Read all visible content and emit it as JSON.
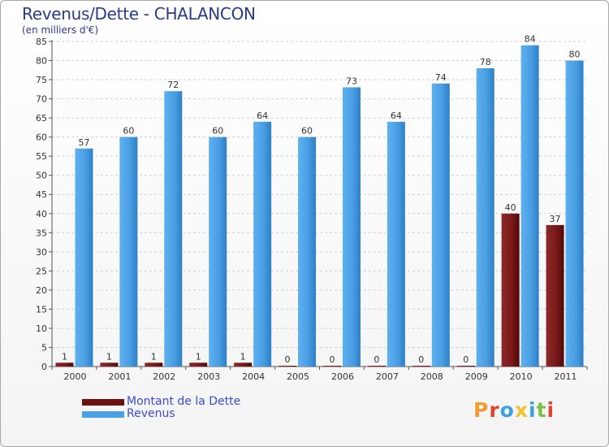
{
  "header": {
    "title": "Revenus/Dette - CHALANCON",
    "subtitle": "(en milliers d'€)"
  },
  "chart_data": {
    "type": "bar",
    "title": "Revenus/Dette - CHALANCON",
    "ylabel": "(en milliers d'€)",
    "xlabel": "",
    "ylim": [
      0,
      85
    ],
    "yticks": [
      0,
      5,
      10,
      15,
      20,
      25,
      30,
      35,
      40,
      45,
      50,
      55,
      60,
      65,
      70,
      75,
      80,
      85
    ],
    "grid": "horizontal dashed",
    "categories": [
      "2000",
      "2001",
      "2002",
      "2003",
      "2004",
      "2005",
      "2006",
      "2007",
      "2008",
      "2009",
      "2010",
      "2011"
    ],
    "series": [
      {
        "name": "Montant de la Dette",
        "color": "#7a1a1a",
        "values": [
          1,
          1,
          1,
          1,
          1,
          0,
          0,
          0,
          0,
          0,
          40,
          37
        ]
      },
      {
        "name": "Revenus",
        "color": "#4a9fe3",
        "values": [
          57,
          60,
          72,
          60,
          64,
          60,
          73,
          64,
          74,
          78,
          84,
          80
        ]
      }
    ]
  },
  "legend": {
    "items": [
      {
        "label": "Montant de la Dette",
        "color": "#6b0f0f"
      },
      {
        "label": "Revenus",
        "color": "#4a9fe3"
      }
    ]
  },
  "logo": {
    "letters": [
      "P",
      "r",
      "o",
      "x",
      "i",
      "t",
      "i"
    ],
    "colors": [
      "#f29b2f",
      "#e0442c",
      "#3da0e0",
      "#f2c12e",
      "#3da0e0",
      "#7cc04b",
      "#e0442c"
    ]
  }
}
